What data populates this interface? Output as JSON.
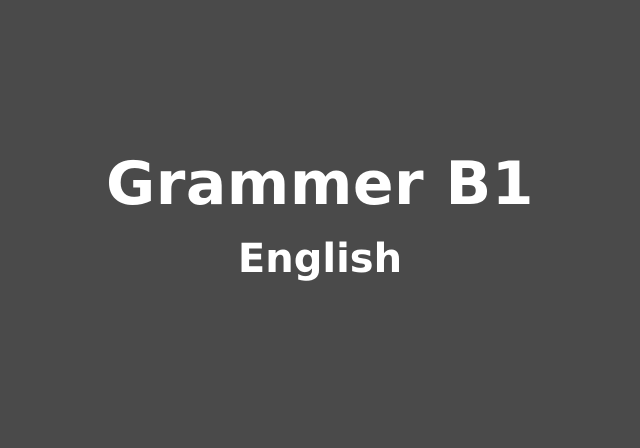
{
  "slide": {
    "title": "Grammer B1",
    "subtitle": "English",
    "background_color": "#4a4a4a",
    "text_color": "#ffffff"
  }
}
